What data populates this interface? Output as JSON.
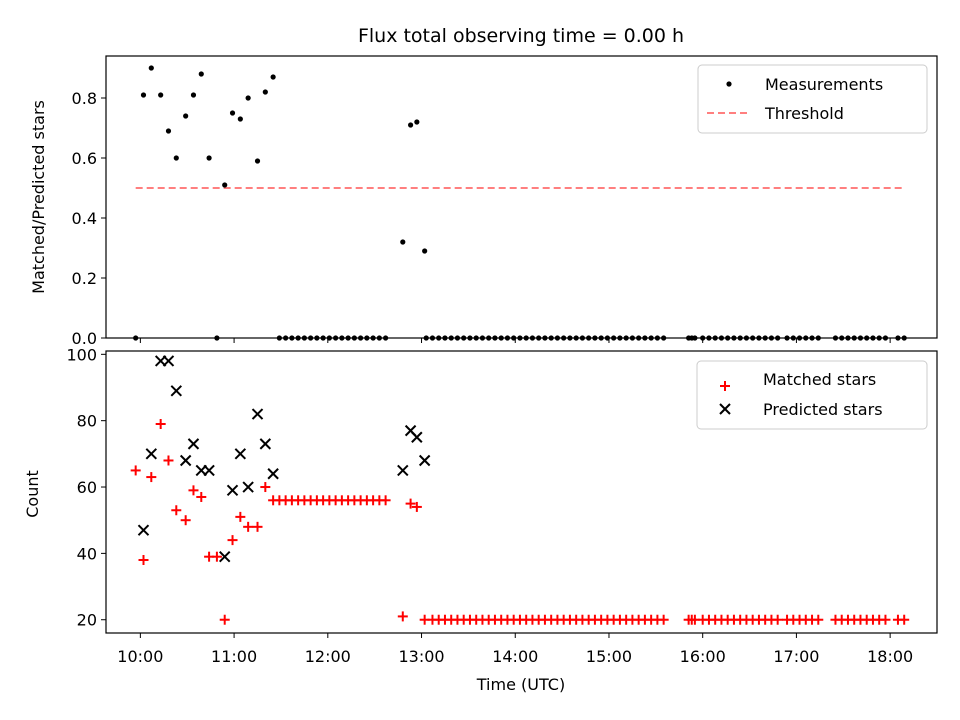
{
  "chart_data": [
    {
      "type": "scatter",
      "title": "Flux total observing time = 0.00 h",
      "xlabel": "",
      "ylabel": "Matched/Predicted stars",
      "xlim": [
        "09:38",
        "18:30"
      ],
      "ylim": [
        0,
        0.94
      ],
      "yticks": [
        0.0,
        0.2,
        0.4,
        0.6,
        0.8
      ],
      "ytick_labels": [
        "0.0",
        "0.2",
        "0.4",
        "0.6",
        "0.8"
      ],
      "legend": {
        "placement": "upper right",
        "entries": [
          "Measurements",
          "Threshold"
        ]
      },
      "colors": {
        "measurements": "#000000",
        "threshold": "#ff7f7f"
      },
      "series": [
        {
          "name": "Measurements",
          "marker": "dot",
          "points": [
            [
              "09:57",
              0.0
            ],
            [
              "10:02",
              0.81
            ],
            [
              "10:07",
              0.9
            ],
            [
              "10:13",
              0.81
            ],
            [
              "10:18",
              0.69
            ],
            [
              "10:23",
              0.6
            ],
            [
              "10:29",
              0.74
            ],
            [
              "10:34",
              0.81
            ],
            [
              "10:39",
              0.88
            ],
            [
              "10:44",
              0.6
            ],
            [
              "10:49",
              0.0
            ],
            [
              "10:54",
              0.51
            ],
            [
              "10:59",
              0.75
            ],
            [
              "11:04",
              0.73
            ],
            [
              "11:09",
              0.8
            ],
            [
              "11:15",
              0.59
            ],
            [
              "11:20",
              0.82
            ],
            [
              "11:25",
              0.87
            ],
            [
              "11:29",
              0.0
            ],
            [
              "11:33",
              0.0
            ],
            [
              "11:37",
              0.0
            ],
            [
              "11:41",
              0.0
            ],
            [
              "11:45",
              0.0
            ],
            [
              "11:49",
              0.0
            ],
            [
              "11:53",
              0.0
            ],
            [
              "11:57",
              0.0
            ],
            [
              "12:01",
              0.0
            ],
            [
              "12:05",
              0.0
            ],
            [
              "12:09",
              0.0
            ],
            [
              "12:13",
              0.0
            ],
            [
              "12:17",
              0.0
            ],
            [
              "12:21",
              0.0
            ],
            [
              "12:25",
              0.0
            ],
            [
              "12:29",
              0.0
            ],
            [
              "12:33",
              0.0
            ],
            [
              "12:37",
              0.0
            ],
            [
              "12:48",
              0.32
            ],
            [
              "12:53",
              0.71
            ],
            [
              "12:57",
              0.72
            ],
            [
              "13:02",
              0.29
            ],
            [
              "13:03",
              0.0
            ],
            [
              "13:07",
              0.0
            ],
            [
              "13:11",
              0.0
            ],
            [
              "13:15",
              0.0
            ],
            [
              "13:19",
              0.0
            ],
            [
              "13:23",
              0.0
            ],
            [
              "13:27",
              0.0
            ],
            [
              "13:31",
              0.0
            ],
            [
              "13:35",
              0.0
            ],
            [
              "13:39",
              0.0
            ],
            [
              "13:43",
              0.0
            ],
            [
              "13:47",
              0.0
            ],
            [
              "13:51",
              0.0
            ],
            [
              "13:55",
              0.0
            ],
            [
              "13:59",
              0.0
            ],
            [
              "14:03",
              0.0
            ],
            [
              "14:07",
              0.0
            ],
            [
              "14:11",
              0.0
            ],
            [
              "14:15",
              0.0
            ],
            [
              "14:19",
              0.0
            ],
            [
              "14:23",
              0.0
            ],
            [
              "14:27",
              0.0
            ],
            [
              "14:31",
              0.0
            ],
            [
              "14:35",
              0.0
            ],
            [
              "14:39",
              0.0
            ],
            [
              "14:43",
              0.0
            ],
            [
              "14:47",
              0.0
            ],
            [
              "14:51",
              0.0
            ],
            [
              "14:55",
              0.0
            ],
            [
              "14:59",
              0.0
            ],
            [
              "15:03",
              0.0
            ],
            [
              "15:07",
              0.0
            ],
            [
              "15:11",
              0.0
            ],
            [
              "15:15",
              0.0
            ],
            [
              "15:19",
              0.0
            ],
            [
              "15:23",
              0.0
            ],
            [
              "15:27",
              0.0
            ],
            [
              "15:31",
              0.0
            ],
            [
              "15:35",
              0.0
            ],
            [
              "15:51",
              0.0
            ],
            [
              "15:53",
              0.0
            ],
            [
              "15:55",
              0.0
            ],
            [
              "16:00",
              0.0
            ],
            [
              "16:04",
              0.0
            ],
            [
              "16:08",
              0.0
            ],
            [
              "16:12",
              0.0
            ],
            [
              "16:16",
              0.0
            ],
            [
              "16:20",
              0.0
            ],
            [
              "16:24",
              0.0
            ],
            [
              "16:28",
              0.0
            ],
            [
              "16:32",
              0.0
            ],
            [
              "16:36",
              0.0
            ],
            [
              "16:40",
              0.0
            ],
            [
              "16:44",
              0.0
            ],
            [
              "16:48",
              0.0
            ],
            [
              "16:54",
              0.0
            ],
            [
              "16:58",
              0.0
            ],
            [
              "17:02",
              0.0
            ],
            [
              "17:06",
              0.0
            ],
            [
              "17:10",
              0.0
            ],
            [
              "17:14",
              0.0
            ],
            [
              "17:25",
              0.0
            ],
            [
              "17:29",
              0.0
            ],
            [
              "17:33",
              0.0
            ],
            [
              "17:37",
              0.0
            ],
            [
              "17:41",
              0.0
            ],
            [
              "17:45",
              0.0
            ],
            [
              "17:49",
              0.0
            ],
            [
              "17:53",
              0.0
            ],
            [
              "17:57",
              0.0
            ],
            [
              "18:05",
              0.0
            ],
            [
              "18:09",
              0.0
            ]
          ]
        },
        {
          "name": "Threshold",
          "marker": "dashed-line",
          "points": [
            [
              "09:57",
              0.5
            ],
            [
              "18:09",
              0.5
            ]
          ]
        }
      ]
    },
    {
      "type": "scatter",
      "title": "",
      "xlabel": "Time (UTC)",
      "ylabel": "Count",
      "xlim": [
        "09:38",
        "18:30"
      ],
      "ylim": [
        16,
        101
      ],
      "yticks": [
        20,
        40,
        60,
        80,
        100
      ],
      "ytick_labels": [
        "20",
        "40",
        "60",
        "80",
        "100"
      ],
      "xticks": [
        "10:00",
        "11:00",
        "12:00",
        "13:00",
        "14:00",
        "15:00",
        "16:00",
        "17:00",
        "18:00"
      ],
      "legend": {
        "placement": "upper right",
        "entries": [
          "Matched stars",
          "Predicted stars"
        ]
      },
      "colors": {
        "matched": "#ff0000",
        "predicted": "#000000"
      },
      "series": [
        {
          "name": "Matched stars",
          "marker": "plus",
          "points": [
            [
              "09:57",
              65
            ],
            [
              "10:02",
              38
            ],
            [
              "10:07",
              63
            ],
            [
              "10:13",
              79
            ],
            [
              "10:18",
              68
            ],
            [
              "10:23",
              53
            ],
            [
              "10:29",
              50
            ],
            [
              "10:34",
              59
            ],
            [
              "10:39",
              57
            ],
            [
              "10:44",
              39
            ],
            [
              "10:49",
              39
            ],
            [
              "10:54",
              20
            ],
            [
              "10:59",
              44
            ],
            [
              "11:04",
              51
            ],
            [
              "11:09",
              48
            ],
            [
              "11:15",
              48
            ],
            [
              "11:20",
              60
            ],
            [
              "11:25",
              56
            ],
            [
              "11:29",
              56
            ],
            [
              "11:33",
              56
            ],
            [
              "11:37",
              56
            ],
            [
              "11:41",
              56
            ],
            [
              "11:45",
              56
            ],
            [
              "11:49",
              56
            ],
            [
              "11:53",
              56
            ],
            [
              "11:57",
              56
            ],
            [
              "12:01",
              56
            ],
            [
              "12:05",
              56
            ],
            [
              "12:09",
              56
            ],
            [
              "12:13",
              56
            ],
            [
              "12:17",
              56
            ],
            [
              "12:21",
              56
            ],
            [
              "12:25",
              56
            ],
            [
              "12:29",
              56
            ],
            [
              "12:33",
              56
            ],
            [
              "12:37",
              56
            ],
            [
              "12:48",
              21
            ],
            [
              "12:53",
              55
            ],
            [
              "12:57",
              54
            ],
            [
              "13:02",
              20
            ],
            [
              "13:07",
              20
            ],
            [
              "13:11",
              20
            ],
            [
              "13:15",
              20
            ],
            [
              "13:19",
              20
            ],
            [
              "13:23",
              20
            ],
            [
              "13:27",
              20
            ],
            [
              "13:31",
              20
            ],
            [
              "13:35",
              20
            ],
            [
              "13:39",
              20
            ],
            [
              "13:43",
              20
            ],
            [
              "13:47",
              20
            ],
            [
              "13:51",
              20
            ],
            [
              "13:55",
              20
            ],
            [
              "13:59",
              20
            ],
            [
              "14:03",
              20
            ],
            [
              "14:07",
              20
            ],
            [
              "14:11",
              20
            ],
            [
              "14:15",
              20
            ],
            [
              "14:19",
              20
            ],
            [
              "14:23",
              20
            ],
            [
              "14:27",
              20
            ],
            [
              "14:31",
              20
            ],
            [
              "14:35",
              20
            ],
            [
              "14:39",
              20
            ],
            [
              "14:43",
              20
            ],
            [
              "14:47",
              20
            ],
            [
              "14:51",
              20
            ],
            [
              "14:55",
              20
            ],
            [
              "14:59",
              20
            ],
            [
              "15:03",
              20
            ],
            [
              "15:07",
              20
            ],
            [
              "15:11",
              20
            ],
            [
              "15:15",
              20
            ],
            [
              "15:19",
              20
            ],
            [
              "15:23",
              20
            ],
            [
              "15:27",
              20
            ],
            [
              "15:31",
              20
            ],
            [
              "15:35",
              20
            ],
            [
              "15:51",
              20
            ],
            [
              "15:53",
              20
            ],
            [
              "15:55",
              20
            ],
            [
              "16:00",
              20
            ],
            [
              "16:04",
              20
            ],
            [
              "16:08",
              20
            ],
            [
              "16:12",
              20
            ],
            [
              "16:16",
              20
            ],
            [
              "16:20",
              20
            ],
            [
              "16:24",
              20
            ],
            [
              "16:28",
              20
            ],
            [
              "16:32",
              20
            ],
            [
              "16:36",
              20
            ],
            [
              "16:40",
              20
            ],
            [
              "16:44",
              20
            ],
            [
              "16:48",
              20
            ],
            [
              "16:54",
              20
            ],
            [
              "16:58",
              20
            ],
            [
              "17:02",
              20
            ],
            [
              "17:06",
              20
            ],
            [
              "17:10",
              20
            ],
            [
              "17:14",
              20
            ],
            [
              "17:25",
              20
            ],
            [
              "17:29",
              20
            ],
            [
              "17:33",
              20
            ],
            [
              "17:37",
              20
            ],
            [
              "17:41",
              20
            ],
            [
              "17:45",
              20
            ],
            [
              "17:49",
              20
            ],
            [
              "17:53",
              20
            ],
            [
              "17:57",
              20
            ],
            [
              "18:05",
              20
            ],
            [
              "18:09",
              20
            ]
          ]
        },
        {
          "name": "Predicted stars",
          "marker": "x",
          "points": [
            [
              "10:02",
              47
            ],
            [
              "10:07",
              70
            ],
            [
              "10:13",
              98
            ],
            [
              "10:18",
              98
            ],
            [
              "10:23",
              89
            ],
            [
              "10:29",
              68
            ],
            [
              "10:34",
              73
            ],
            [
              "10:39",
              65
            ],
            [
              "10:44",
              65
            ],
            [
              "10:54",
              39
            ],
            [
              "10:59",
              59
            ],
            [
              "11:04",
              70
            ],
            [
              "11:09",
              60
            ],
            [
              "11:15",
              82
            ],
            [
              "11:20",
              73
            ],
            [
              "11:25",
              64
            ],
            [
              "12:48",
              65
            ],
            [
              "12:53",
              77
            ],
            [
              "12:57",
              75
            ],
            [
              "13:02",
              68
            ]
          ]
        }
      ]
    }
  ]
}
